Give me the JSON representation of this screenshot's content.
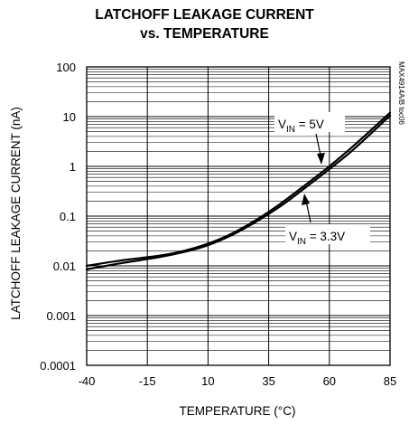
{
  "chart_data": {
    "type": "line",
    "title": "LATCHOFF LEAKAGE CURRENT",
    "subtitle": "vs. TEMPERATURE",
    "xlabel": "TEMPERATURE (°C)",
    "ylabel": "LATCHOFF LEAKAGE CURRENT (nA)",
    "xlim": [
      -40,
      85
    ],
    "ylim": [
      0.0001,
      100
    ],
    "yscale": "log",
    "grid": true,
    "x_ticks": [
      "-40",
      "-15",
      "10",
      "35",
      "60",
      "85"
    ],
    "y_ticks": [
      "100",
      "10",
      "1",
      "0.1",
      "0.01",
      "0.001",
      "0.0001"
    ],
    "series": [
      {
        "name": "VIN = 5V",
        "x": [
          -40,
          -25,
          -10,
          0,
          10,
          20,
          30,
          40,
          50,
          60,
          70,
          85
        ],
        "values": [
          0.01,
          0.013,
          0.016,
          0.02,
          0.028,
          0.045,
          0.085,
          0.18,
          0.42,
          1.0,
          2.6,
          12.0
        ]
      },
      {
        "name": "VIN = 3.3V",
        "x": [
          -40,
          -25,
          -10,
          0,
          10,
          20,
          30,
          40,
          50,
          60,
          70,
          85
        ],
        "values": [
          0.0085,
          0.0115,
          0.015,
          0.019,
          0.026,
          0.042,
          0.078,
          0.16,
          0.37,
          0.88,
          2.2,
          10.5
        ]
      }
    ],
    "annotations": [
      {
        "main": "V",
        "sub": "IN",
        "rest": " = 5V"
      },
      {
        "main": "V",
        "sub": "IN",
        "rest": " = 3.3V"
      }
    ],
    "side_note": "MAX4914A/B toc06",
    "line_color": "#000000"
  }
}
